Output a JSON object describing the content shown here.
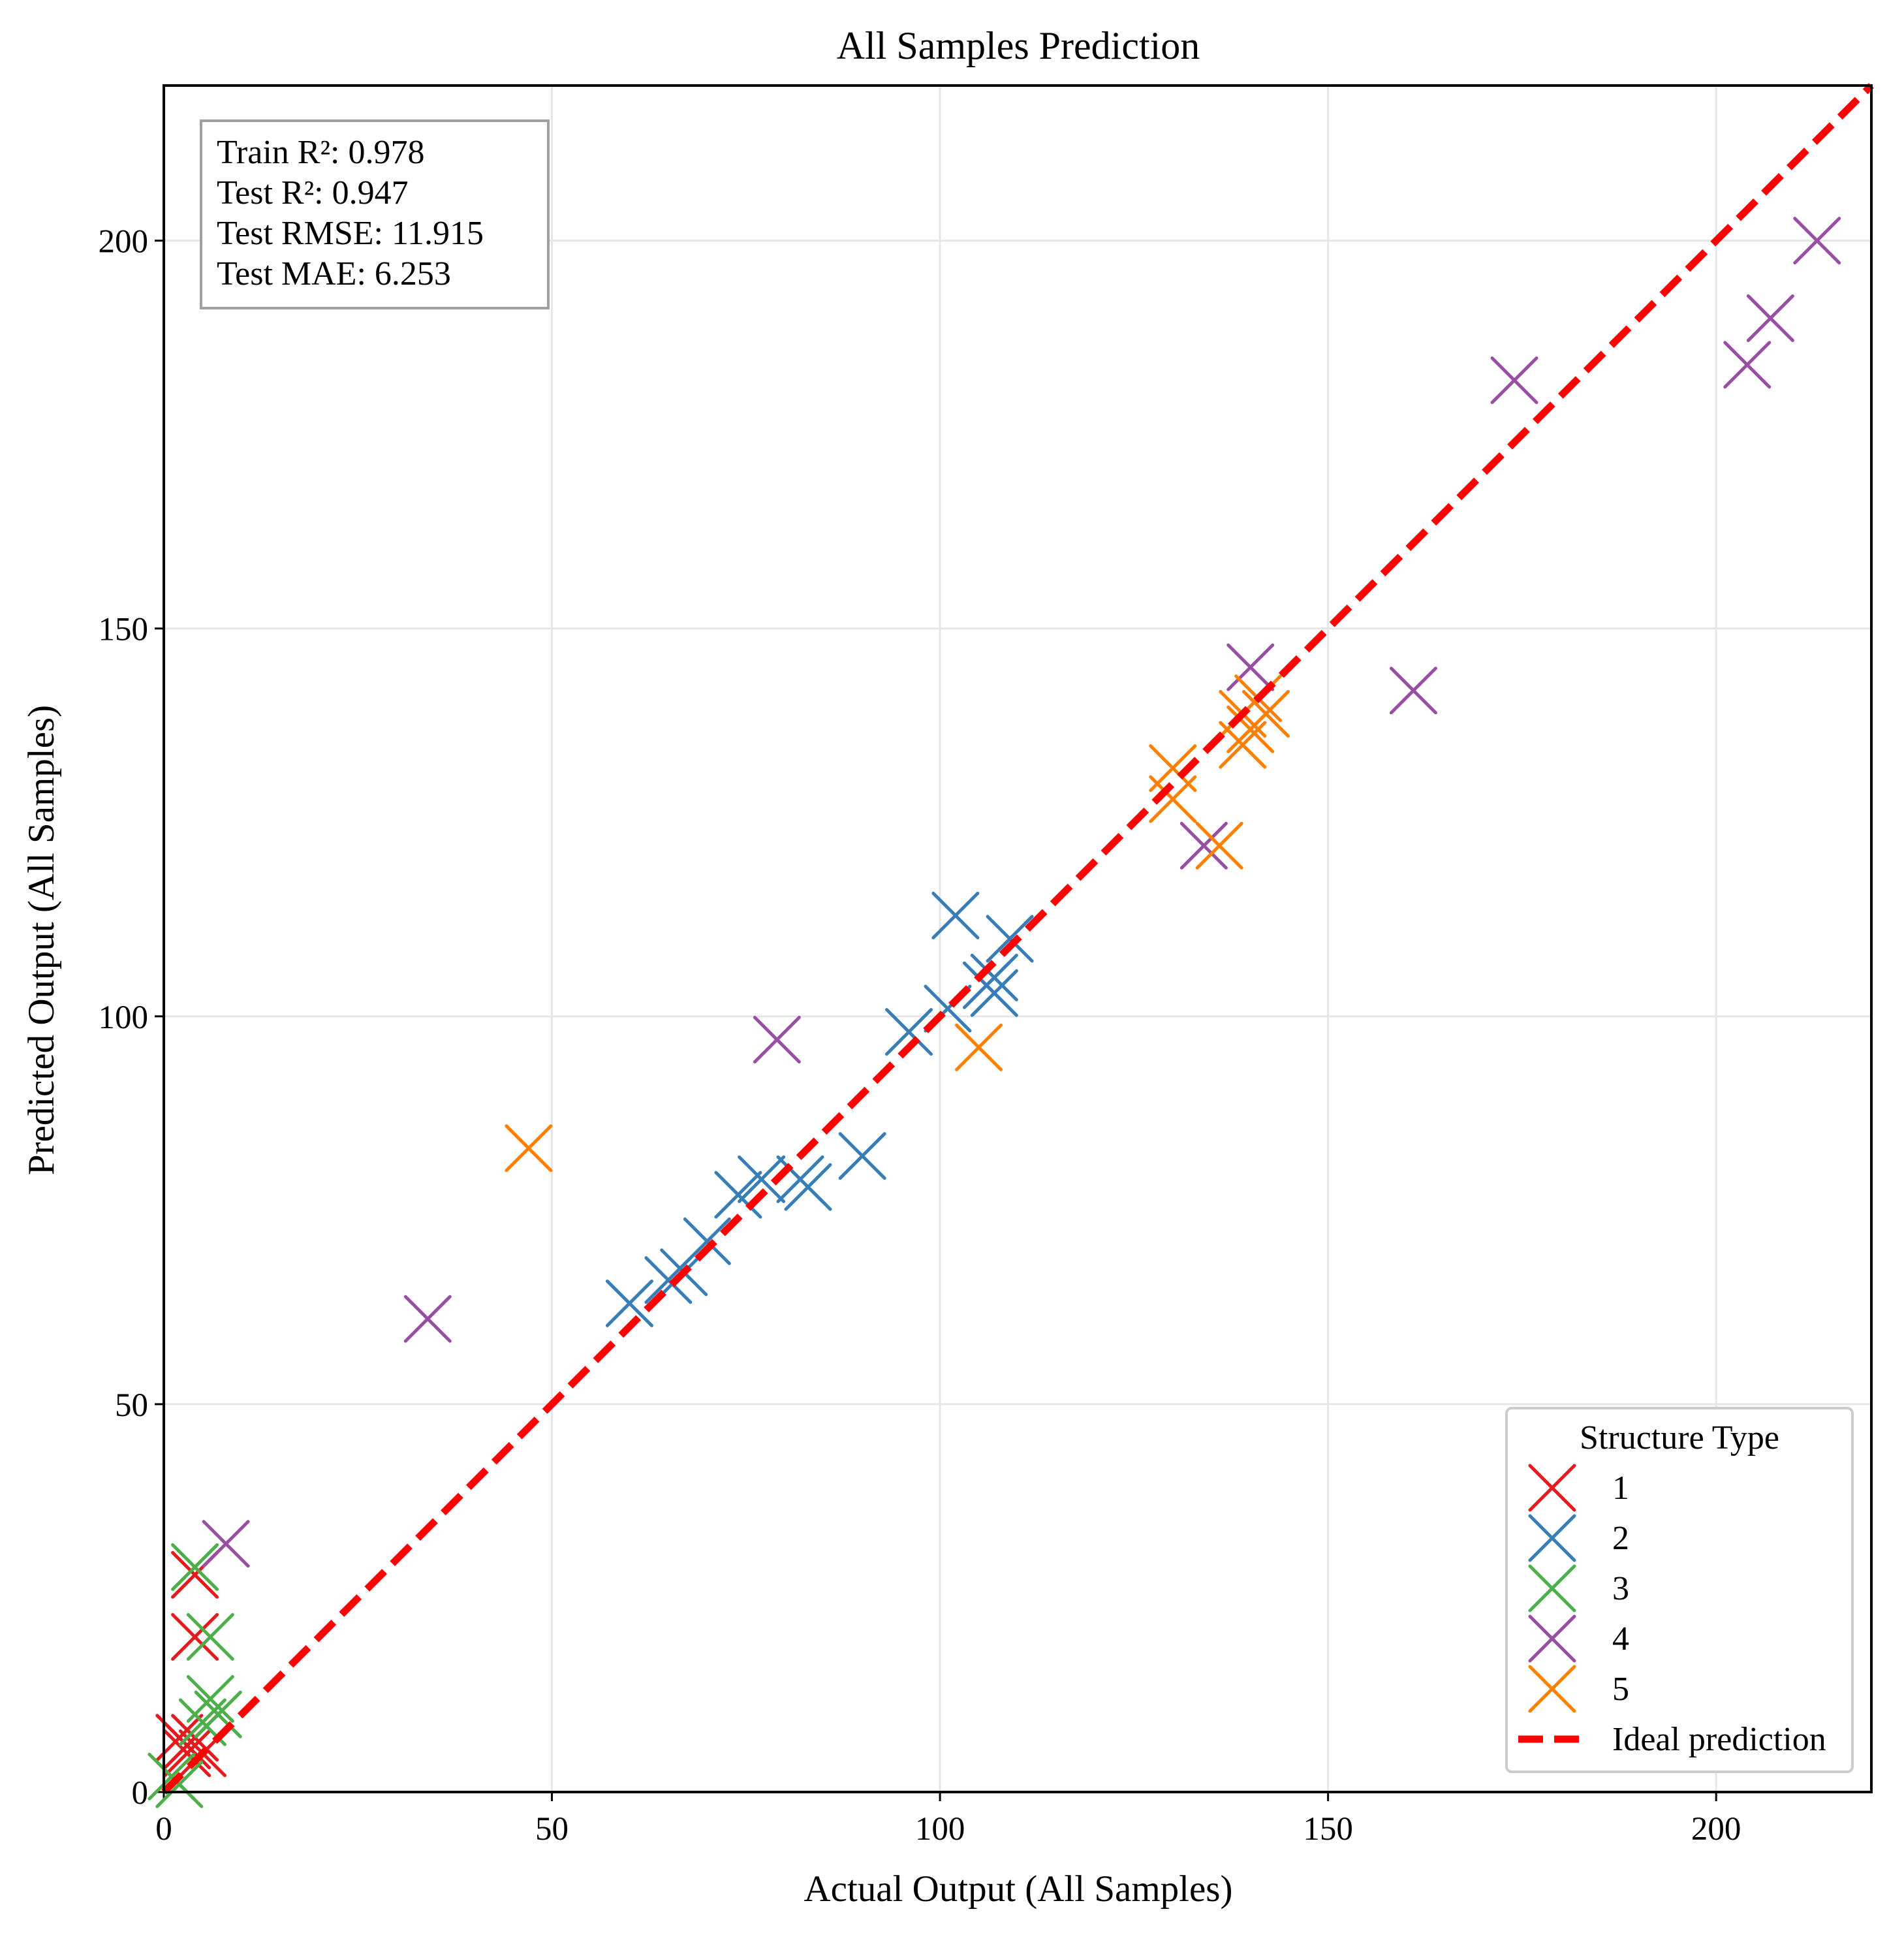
{
  "chart_data": {
    "type": "scatter",
    "title": "All Samples Prediction",
    "xlabel": "Actual Output (All Samples)",
    "ylabel": "Predicted Output (All Samples)",
    "xlim": [
      0,
      220
    ],
    "ylim": [
      0,
      220
    ],
    "xticks": [
      0,
      50,
      100,
      150,
      200
    ],
    "yticks": [
      0,
      50,
      100,
      150,
      200
    ],
    "grid": true,
    "stats": [
      "Train R²: 0.978",
      "Test  R²: 0.947",
      "Test  RMSE: 11.915",
      "Test  MAE: 6.253"
    ],
    "legend": {
      "title": "Structure Type",
      "placement": "bottom-right"
    },
    "ideal_line": {
      "label": "Ideal prediction",
      "color": "#ff0000",
      "from": [
        0,
        0
      ],
      "to": [
        220,
        220
      ]
    },
    "series": [
      {
        "name": "1",
        "color": "#e41a1c",
        "points": [
          [
            2,
            7
          ],
          [
            3,
            6
          ],
          [
            4,
            7
          ],
          [
            4,
            28
          ],
          [
            4,
            20
          ],
          [
            5,
            5
          ],
          [
            3,
            5
          ]
        ]
      },
      {
        "name": "2",
        "color": "#377eb8",
        "points": [
          [
            60,
            63
          ],
          [
            65,
            66
          ],
          [
            67,
            67
          ],
          [
            70,
            71
          ],
          [
            74,
            77
          ],
          [
            77,
            79
          ],
          [
            82,
            79
          ],
          [
            83,
            78
          ],
          [
            90,
            82
          ],
          [
            96,
            98
          ],
          [
            101,
            101
          ],
          [
            102,
            113
          ],
          [
            106,
            104
          ],
          [
            107,
            105
          ],
          [
            107,
            103
          ],
          [
            109,
            110
          ]
        ]
      },
      {
        "name": "3",
        "color": "#4daf4a",
        "points": [
          [
            1,
            2
          ],
          [
            2,
            1
          ],
          [
            4,
            29
          ],
          [
            6,
            20
          ],
          [
            6,
            12
          ],
          [
            7,
            10
          ],
          [
            5,
            9
          ]
        ]
      },
      {
        "name": "4",
        "color": "#984ea3",
        "points": [
          [
            8,
            32
          ],
          [
            34,
            61
          ],
          [
            79,
            97
          ],
          [
            134,
            122
          ],
          [
            140,
            145
          ],
          [
            161,
            142
          ],
          [
            174,
            182
          ],
          [
            204,
            184
          ],
          [
            207,
            190
          ],
          [
            213,
            200
          ]
        ]
      },
      {
        "name": "5",
        "color": "#ff7f00",
        "points": [
          [
            47,
            83
          ],
          [
            105,
            96
          ],
          [
            130,
            132
          ],
          [
            130,
            128
          ],
          [
            136,
            122
          ],
          [
            139,
            139
          ],
          [
            139,
            135
          ],
          [
            140,
            137
          ],
          [
            141,
            141
          ],
          [
            142,
            139
          ]
        ]
      }
    ]
  }
}
